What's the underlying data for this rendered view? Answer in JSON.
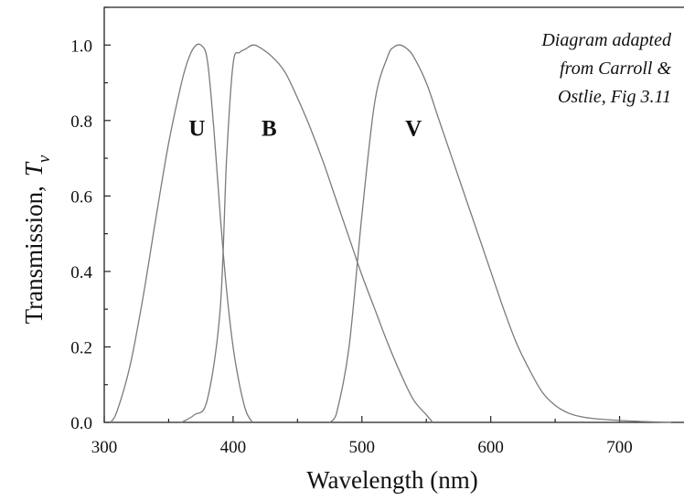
{
  "chart_data": {
    "type": "line",
    "xlabel": "Wavelength (nm)",
    "ylabel": "Transmission,",
    "ylabel_symbol": "T",
    "ylabel_subscript": "ν",
    "xlim": [
      300,
      750
    ],
    "ylim": [
      0,
      1.1
    ],
    "xticks": [
      300,
      400,
      500,
      600,
      700
    ],
    "xtick_labels": [
      "300",
      "400",
      "500",
      "600",
      "700"
    ],
    "yticks": [
      0,
      0.2,
      0.4,
      0.6,
      0.8,
      1.0
    ],
    "ytick_labels": [
      "0.0",
      "0.2",
      "0.4",
      "0.6",
      "0.8",
      "1.0"
    ],
    "grid": false,
    "annotation": [
      "Diagram adapted",
      "from Carroll &",
      "Ostlie, Fig 3.11"
    ],
    "series": [
      {
        "name": "U",
        "label_pos": [
          372,
          0.76
        ],
        "x": [
          305,
          310,
          320,
          330,
          340,
          350,
          360,
          365,
          370,
          375,
          380,
          385,
          390,
          395,
          400,
          405,
          410,
          415
        ],
        "y": [
          0.0,
          0.03,
          0.15,
          0.33,
          0.54,
          0.74,
          0.9,
          0.96,
          0.995,
          1.0,
          0.96,
          0.78,
          0.55,
          0.35,
          0.2,
          0.1,
          0.03,
          0.0
        ]
      },
      {
        "name": "B",
        "label_pos": [
          428,
          0.76
        ],
        "x": [
          360,
          370,
          380,
          390,
          395,
          400,
          405,
          410,
          415,
          420,
          430,
          440,
          450,
          460,
          470,
          480,
          490,
          500,
          510,
          520,
          530,
          540,
          550,
          555
        ],
        "y": [
          0.0,
          0.02,
          0.06,
          0.3,
          0.7,
          0.95,
          0.98,
          0.99,
          1.0,
          0.995,
          0.97,
          0.93,
          0.86,
          0.78,
          0.69,
          0.59,
          0.49,
          0.39,
          0.3,
          0.21,
          0.13,
          0.06,
          0.02,
          0.0
        ]
      },
      {
        "name": "V",
        "label_pos": [
          540,
          0.76
        ],
        "x": [
          475,
          480,
          490,
          500,
          510,
          520,
          525,
          530,
          535,
          540,
          550,
          560,
          570,
          580,
          590,
          600,
          610,
          620,
          630,
          640,
          650,
          660,
          670,
          680,
          700,
          720,
          740
        ],
        "y": [
          0.0,
          0.02,
          0.2,
          0.55,
          0.85,
          0.97,
          0.995,
          1.0,
          0.99,
          0.97,
          0.9,
          0.8,
          0.7,
          0.6,
          0.5,
          0.4,
          0.3,
          0.21,
          0.14,
          0.08,
          0.045,
          0.025,
          0.015,
          0.01,
          0.005,
          0.002,
          0.0
        ]
      }
    ]
  }
}
